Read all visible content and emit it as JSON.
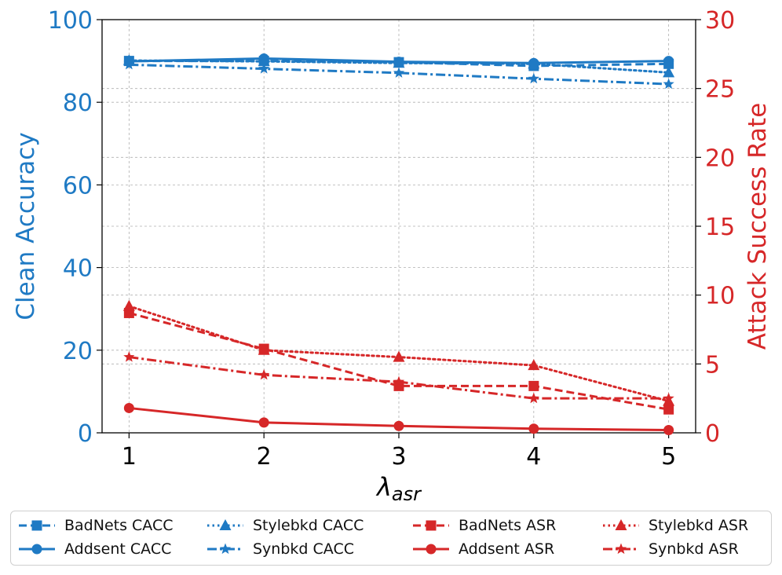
{
  "chart_data": {
    "type": "line",
    "x": [
      1,
      2,
      3,
      4,
      5
    ],
    "xlabel_base": "λ",
    "xlabel_sub": "asr",
    "ylabel_left": "Clean Accuracy",
    "ylabel_right": "Attack Success Rate",
    "ylim_left": [
      0,
      100
    ],
    "ylim_right": [
      0,
      30
    ],
    "yticks_left": [
      0,
      20,
      40,
      60,
      80,
      100
    ],
    "yticks_right": [
      0,
      5,
      10,
      15,
      20,
      25,
      30
    ],
    "xticks": [
      "1",
      "2",
      "3",
      "4",
      "5"
    ],
    "grid": true,
    "colors": {
      "cacc": "#1f7ac4",
      "asr": "#d62728"
    },
    "series": [
      {
        "name": "BadNets CACC",
        "axis": "left",
        "group": "cacc",
        "dash": "dashed",
        "marker": "square",
        "values": [
          90.0,
          90.0,
          89.7,
          88.8,
          89.3
        ]
      },
      {
        "name": "Addsent CACC",
        "axis": "left",
        "group": "cacc",
        "dash": "solid",
        "marker": "circle",
        "values": [
          89.9,
          90.6,
          89.8,
          89.5,
          90.0
        ]
      },
      {
        "name": "Stylebkd CACC",
        "axis": "left",
        "group": "cacc",
        "dash": "dotted",
        "marker": "triangle",
        "values": [
          90.1,
          89.9,
          89.5,
          89.3,
          87.2
        ]
      },
      {
        "name": "Synbkd CACC",
        "axis": "left",
        "group": "cacc",
        "dash": "dashdot",
        "marker": "star",
        "values": [
          89.1,
          88.1,
          87.1,
          85.7,
          84.4
        ]
      },
      {
        "name": "BadNets ASR",
        "axis": "right",
        "group": "asr",
        "dash": "dashed",
        "marker": "square",
        "values": [
          8.7,
          6.1,
          3.4,
          3.4,
          1.7
        ]
      },
      {
        "name": "Addsent ASR",
        "axis": "right",
        "group": "asr",
        "dash": "solid",
        "marker": "circle",
        "values": [
          1.8,
          0.75,
          0.5,
          0.3,
          0.2
        ]
      },
      {
        "name": "Stylebkd ASR",
        "axis": "right",
        "group": "asr",
        "dash": "dotted",
        "marker": "triangle",
        "values": [
          9.2,
          6.0,
          5.5,
          4.9,
          2.3
        ]
      },
      {
        "name": "Synbkd ASR",
        "axis": "right",
        "group": "asr",
        "dash": "dashdot",
        "marker": "star",
        "values": [
          5.5,
          4.2,
          3.7,
          2.5,
          2.5
        ]
      }
    ],
    "legend_position": "bottom"
  },
  "legend": {
    "items": [
      {
        "label": "BadNets CACC",
        "series": 0
      },
      {
        "label": "Stylebkd CACC",
        "series": 2
      },
      {
        "label": "BadNets ASR",
        "series": 4
      },
      {
        "label": "Stylebkd ASR",
        "series": 6
      },
      {
        "label": "Addsent CACC",
        "series": 1
      },
      {
        "label": "Synbkd CACC",
        "series": 3
      },
      {
        "label": "Addsent ASR",
        "series": 5
      },
      {
        "label": "Synbkd ASR",
        "series": 7
      }
    ]
  }
}
